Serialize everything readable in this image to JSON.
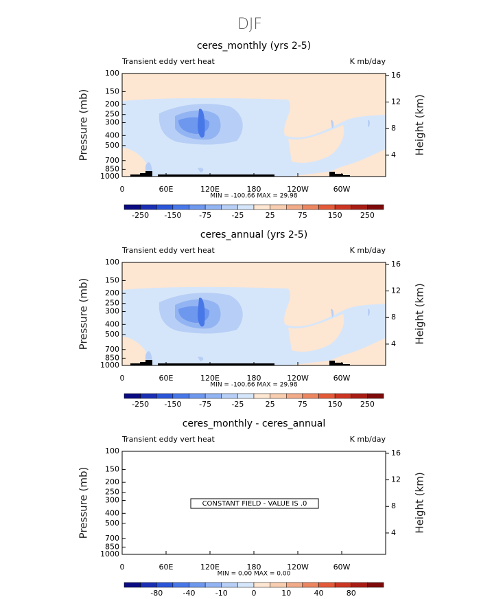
{
  "title": "DJF",
  "panels": [
    {
      "title": "ceres_monthly (yrs 2-5)",
      "left_label": "Transient eddy vert heat",
      "right_label": "K mb/day",
      "y_label": "Pressure (mb)",
      "y2_label": "Height (km)",
      "yticks": [
        100,
        150,
        200,
        250,
        300,
        400,
        500,
        700,
        850,
        1000
      ],
      "y2ticks": [
        16,
        12,
        8,
        4
      ],
      "xticks": [
        "0",
        "60E",
        "120E",
        "180",
        "120W",
        "60W"
      ],
      "stats": "MIN = -100.66   MAX =  29.98",
      "colorbar_labels": [
        -250,
        -150,
        -75,
        -25,
        25,
        75,
        150,
        250
      ]
    },
    {
      "title": "ceres_annual (yrs 2-5)",
      "left_label": "Transient eddy vert heat",
      "right_label": "K mb/day",
      "y_label": "Pressure (mb)",
      "y2_label": "Height (km)",
      "yticks": [
        100,
        150,
        200,
        250,
        300,
        400,
        500,
        700,
        850,
        1000
      ],
      "y2ticks": [
        16,
        12,
        8,
        4
      ],
      "xticks": [
        "0",
        "60E",
        "120E",
        "180",
        "120W",
        "60W"
      ],
      "stats": "MIN = -100.66   MAX =  29.98",
      "colorbar_labels": [
        -250,
        -150,
        -75,
        -25,
        25,
        75,
        150,
        250
      ]
    },
    {
      "title": "ceres_monthly - ceres_annual",
      "left_label": "Transient eddy vert heat",
      "right_label": "K mb/day",
      "y_label": "Pressure (mb)",
      "y2_label": "Height (km)",
      "yticks": [
        100,
        150,
        200,
        250,
        300,
        400,
        500,
        700,
        850,
        1000
      ],
      "y2ticks": [
        16,
        12,
        8,
        4
      ],
      "xticks": [
        "0",
        "60E",
        "120E",
        "180",
        "120W",
        "60W"
      ],
      "stats": "MIN =    0.00   MAX =    0.00",
      "constant_text": "CONSTANT FIELD - VALUE IS .0",
      "colorbar_labels": [
        -80,
        -40,
        -10,
        0,
        10,
        40,
        80
      ]
    }
  ]
}
